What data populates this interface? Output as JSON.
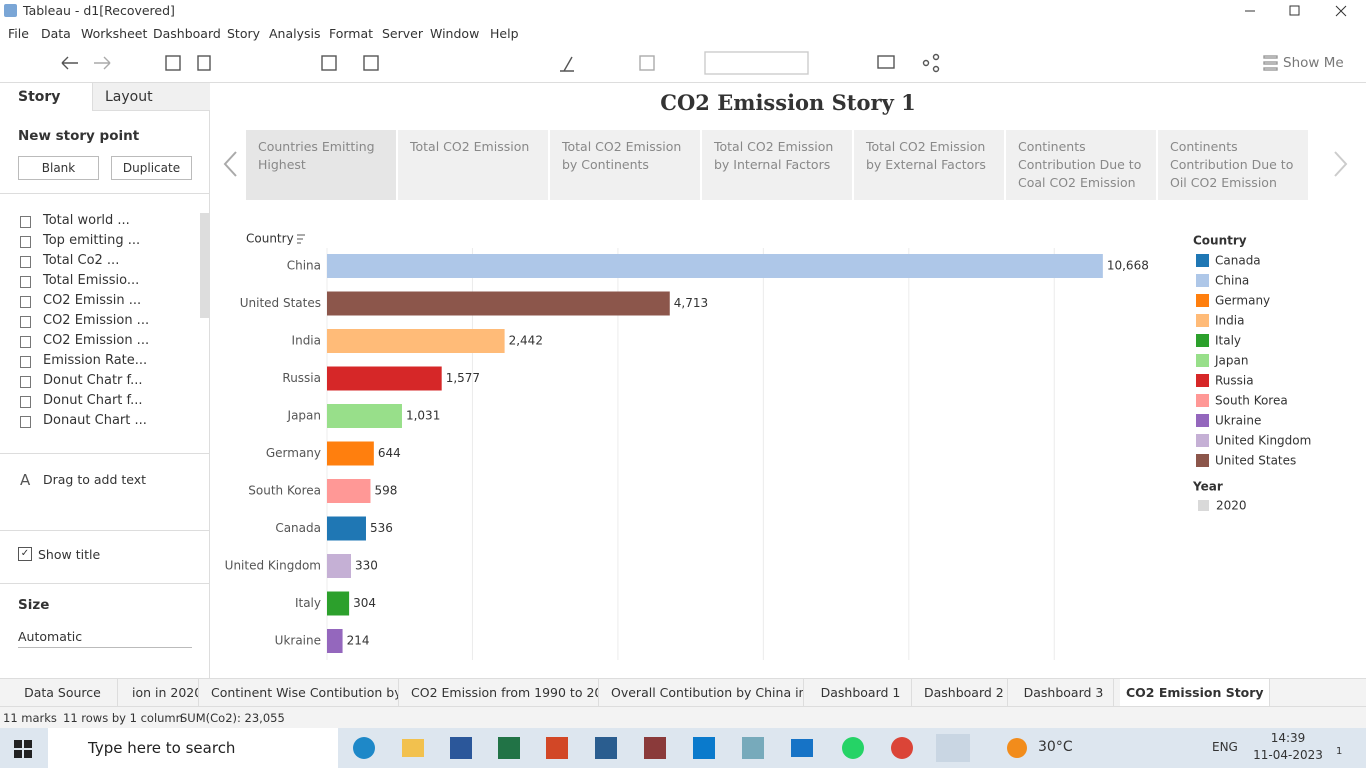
{
  "window": {
    "title": "Tableau - d1[Recovered]"
  },
  "menu": [
    "File",
    "Data",
    "Worksheet",
    "Dashboard",
    "Story",
    "Analysis",
    "Format",
    "Server",
    "Window",
    "Help"
  ],
  "toolbar": {
    "show_me": "Show Me"
  },
  "sidebar": {
    "tabs": [
      "Story",
      "Layout"
    ],
    "new_story_point": "New story point",
    "buttons": [
      "Blank",
      "Duplicate"
    ],
    "sheets": [
      "Total world ...",
      "Top emitting ...",
      "Total Co2 ...",
      "Total Emissio...",
      "CO2 Emissin ...",
      "CO2 Emission ...",
      "CO2 Emission ...",
      "Emission Rate...",
      "Donut Chatr f...",
      "Donut Chart f...",
      "Donaut Chart ..."
    ],
    "drag_text": "Drag to add text",
    "show_title": "Show title",
    "size_label": "Size",
    "size_value": "Automatic"
  },
  "story": {
    "title": "CO2 Emission Story 1",
    "points": [
      "Countries Emitting Highest",
      "Total CO2 Emission",
      "Total CO2 Emission by Continents",
      "Total CO2 Emission by Internal Factors",
      "Total CO2 Emission by External Factors",
      "Continents Contribution Due to Coal CO2 Emission",
      "Continents Contribution Due to Oil CO2 Emission"
    ]
  },
  "chart_data": {
    "type": "hbar",
    "axis_label": "Country",
    "categories": [
      "China",
      "United States",
      "India",
      "Russia",
      "Japan",
      "Germany",
      "South Korea",
      "Canada",
      "United Kingdom",
      "Italy",
      "Ukraine"
    ],
    "values": [
      10668,
      4713,
      2442,
      1577,
      1031,
      644,
      598,
      536,
      330,
      304,
      214
    ],
    "value_labels": [
      "10,668",
      "4,713",
      "2,442",
      "1,577",
      "1,031",
      "644",
      "598",
      "536",
      "330",
      "304",
      "214"
    ],
    "colors": [
      "#aec7e8",
      "#8c564b",
      "#ffbb78",
      "#d62728",
      "#98df8a",
      "#ff7f0e",
      "#ff9896",
      "#1f77b4",
      "#c5b0d5",
      "#2ca02c",
      "#9467bd"
    ],
    "xlim": [
      0,
      11000
    ],
    "xticks": [
      0,
      2000,
      4000,
      6000,
      8000,
      10000
    ],
    "grid": true,
    "legend": {
      "title": "Country",
      "entries": [
        {
          "name": "Canada",
          "color": "#1f77b4"
        },
        {
          "name": "China",
          "color": "#aec7e8"
        },
        {
          "name": "Germany",
          "color": "#ff7f0e"
        },
        {
          "name": "India",
          "color": "#ffbb78"
        },
        {
          "name": "Italy",
          "color": "#2ca02c"
        },
        {
          "name": "Japan",
          "color": "#98df8a"
        },
        {
          "name": "Russia",
          "color": "#d62728"
        },
        {
          "name": "South Korea",
          "color": "#ff9896"
        },
        {
          "name": "Ukraine",
          "color": "#9467bd"
        },
        {
          "name": "United Kingdom",
          "color": "#c5b0d5"
        },
        {
          "name": "United States",
          "color": "#8c564b"
        }
      ]
    },
    "year_legend": {
      "title": "Year",
      "entries": [
        {
          "name": "2020",
          "color": "#d9d9d9"
        }
      ]
    }
  },
  "sheet_tabs": [
    "Data Source",
    "ion in 2020",
    "Continent Wise Contibution by I...",
    "CO2 Emission from 1990 to 202...",
    "Overall Contibution by China in ...",
    "Dashboard 1",
    "Dashboard 2",
    "Dashboard 3",
    "CO2 Emission Story 1"
  ],
  "status": {
    "marks": "11 marks",
    "rows": "11 rows by 1 column",
    "sum": "SUM(Co2): 23,055"
  },
  "taskbar": {
    "search": "Type here to search",
    "weather": "30°C",
    "language": "ENG",
    "time": "14:39",
    "date": "11-04-2023",
    "notifications": "1"
  }
}
